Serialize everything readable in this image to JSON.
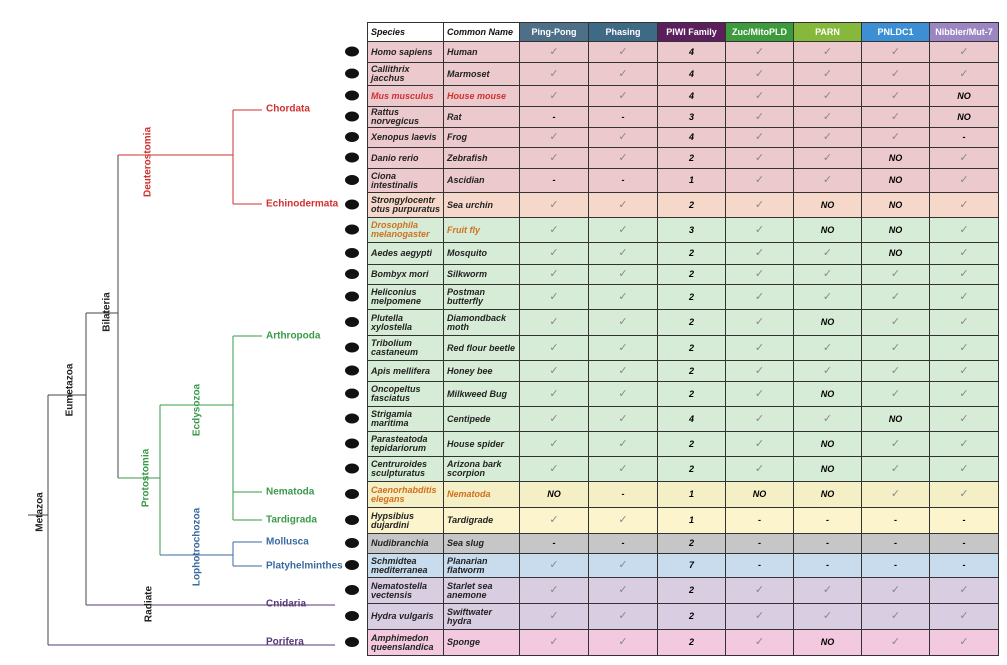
{
  "tree": {
    "nodes": [
      "Metazoa",
      "Eumetazoa",
      "Bilateria",
      "Deuterostomia",
      "Protostomia",
      "Ecdysozoa",
      "Lophotrochozoa",
      "Radiate"
    ],
    "clades": [
      "Chordata",
      "Echinodermata",
      "Arthropoda",
      "Nematoda",
      "Tardigrada",
      "Mollusca",
      "Platyhelminthes",
      "Cnidaria",
      "Porifera"
    ]
  },
  "table": {
    "headers": [
      "Species",
      "Common Name",
      "Ping-Pong",
      "Phasing",
      "PIWI Family",
      "Zuc/MitoPLD",
      "PARN",
      "PNLDC1",
      "Nibbler/Mut-7"
    ],
    "rows": [
      {
        "species": "Homo sapiens",
        "common_name": "Human",
        "cells": [
          "✓",
          "✓",
          4,
          "✓",
          "✓",
          "✓",
          "✓"
        ]
      },
      {
        "species": "Callithrix jacchus",
        "common_name": "Marmoset",
        "cells": [
          "✓",
          "✓",
          4,
          "✓",
          "✓",
          "✓",
          "✓"
        ]
      },
      {
        "species": "Mus musculus",
        "common_name": "House mouse",
        "cells": [
          "✓",
          "✓",
          4,
          "✓",
          "✓",
          "✓",
          "NO"
        ]
      },
      {
        "species": "Rattus norvegicus",
        "common_name": "Rat",
        "cells": [
          "-",
          "-",
          3,
          "✓",
          "✓",
          "✓",
          "NO"
        ]
      },
      {
        "species": "Xenopus laevis",
        "common_name": "Frog",
        "cells": [
          "✓",
          "✓",
          4,
          "✓",
          "✓",
          "✓",
          "-"
        ]
      },
      {
        "species": "Danio rerio",
        "common_name": "Zebrafish",
        "cells": [
          "✓",
          "✓",
          2,
          "✓",
          "✓",
          "NO",
          "✓"
        ]
      },
      {
        "species": "Ciona intestinalis",
        "common_name": "Ascidian",
        "cells": [
          "-",
          "-",
          1,
          "✓",
          "✓",
          "NO",
          "✓"
        ]
      },
      {
        "species": "Strongylocentr otus purpuratus",
        "common_name": "Sea urchin",
        "cells": [
          "✓",
          "✓",
          2,
          "✓",
          "NO",
          "NO",
          "✓"
        ]
      },
      {
        "species": "Drosophila melanogaster",
        "common_name": "Fruit fly",
        "cells": [
          "✓",
          "✓",
          3,
          "✓",
          "NO",
          "NO",
          "✓"
        ]
      },
      {
        "species": "Aedes aegypti",
        "common_name": "Mosquito",
        "cells": [
          "✓",
          "✓",
          2,
          "✓",
          "✓",
          "NO",
          "✓"
        ]
      },
      {
        "species": "Bombyx mori",
        "common_name": "Silkworm",
        "cells": [
          "✓",
          "✓",
          2,
          "✓",
          "✓",
          "✓",
          "✓"
        ]
      },
      {
        "species": "Heliconius melpomene",
        "common_name": "Postman butterfly",
        "cells": [
          "✓",
          "✓",
          2,
          "✓",
          "✓",
          "✓",
          "✓"
        ]
      },
      {
        "species": "Plutella xylostella",
        "common_name": "Diamondback moth",
        "cells": [
          "✓",
          "✓",
          2,
          "✓",
          "NO",
          "✓",
          "✓"
        ]
      },
      {
        "species": "Tribolium castaneum",
        "common_name": "Red flour beetle",
        "cells": [
          "✓",
          "✓",
          2,
          "✓",
          "✓",
          "✓",
          "✓"
        ]
      },
      {
        "species": "Apis mellifera",
        "common_name": "Honey bee",
        "cells": [
          "✓",
          "✓",
          2,
          "✓",
          "✓",
          "✓",
          "✓"
        ]
      },
      {
        "species": "Oncopeltus fasciatus",
        "common_name": "Milkweed Bug",
        "cells": [
          "✓",
          "✓",
          2,
          "✓",
          "NO",
          "✓",
          "✓"
        ]
      },
      {
        "species": "Strigamia maritima",
        "common_name": "Centipede",
        "cells": [
          "✓",
          "✓",
          4,
          "✓",
          "✓",
          "NO",
          "✓"
        ]
      },
      {
        "species": "Parasteatoda tepidariorum",
        "common_name": "House spider",
        "cells": [
          "✓",
          "✓",
          2,
          "✓",
          "NO",
          "✓",
          "✓"
        ]
      },
      {
        "species": "Centruroides sculpturatus",
        "common_name": "Arizona bark scorpion",
        "cells": [
          "✓",
          "✓",
          2,
          "✓",
          "NO",
          "✓",
          "✓"
        ]
      },
      {
        "species": "Caenorhabditis elegans",
        "common_name": "Nematoda",
        "cells": [
          "NO",
          "-",
          1,
          "NO",
          "NO",
          "✓",
          "✓"
        ]
      },
      {
        "species": "Hypsibius dujardini",
        "common_name": "Tardigrade",
        "cells": [
          "✓",
          "✓",
          1,
          "-",
          "-",
          "-",
          "-"
        ]
      },
      {
        "species": "Nudibranchia",
        "common_name": "Sea slug",
        "cells": [
          "-",
          "-",
          2,
          "-",
          "-",
          "-",
          "-"
        ]
      },
      {
        "species": "Schmidtea mediterranea",
        "common_name": "Planarian flatworm",
        "cells": [
          "✓",
          "✓",
          7,
          "-",
          "-",
          "-",
          "-"
        ]
      },
      {
        "species": "Nematostella vectensis",
        "common_name": "Starlet sea anemone",
        "cells": [
          "✓",
          "✓",
          2,
          "✓",
          "✓",
          "✓",
          "✓"
        ]
      },
      {
        "species": "Hydra vulgaris",
        "common_name": "Swiftwater hydra",
        "cells": [
          "✓",
          "✓",
          2,
          "✓",
          "✓",
          "✓",
          "✓"
        ]
      },
      {
        "species": "Amphimedon queenslandica",
        "common_name": "Sponge",
        "cells": [
          "✓",
          "✓",
          2,
          "✓",
          "NO",
          "✓",
          "✓"
        ]
      }
    ]
  }
}
